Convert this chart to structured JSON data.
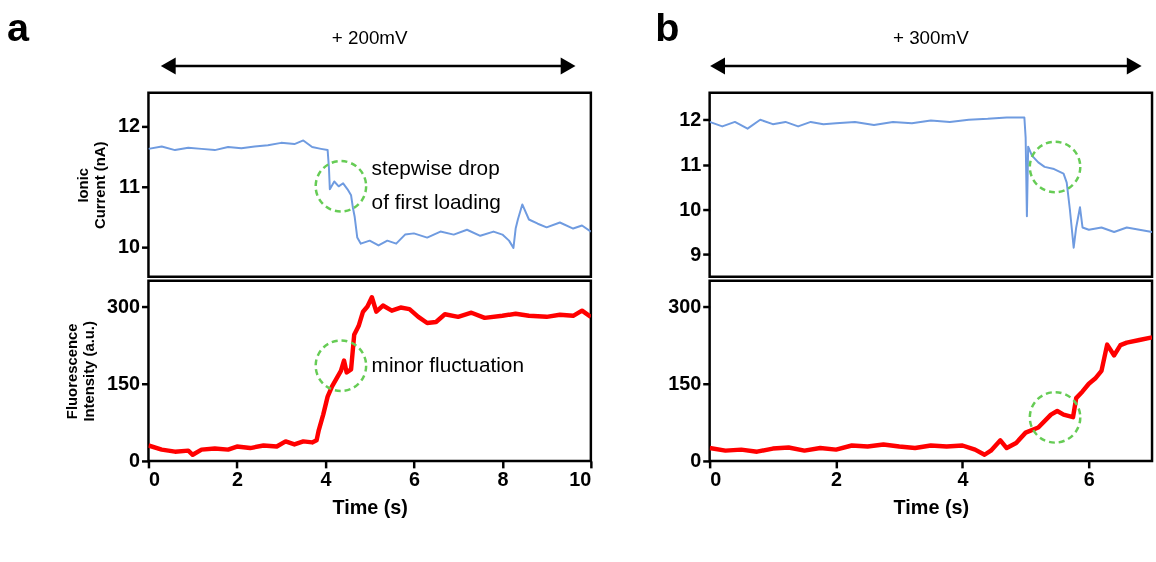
{
  "chart_data": [
    {
      "type": "line",
      "ylabel": "Ionic\nCurrent (nA)",
      "xlim": [
        0,
        10
      ],
      "xticks": [
        0,
        2,
        4,
        6,
        8,
        10
      ],
      "ylim": [
        9.5,
        12.55
      ],
      "yticks": [
        10,
        11,
        12
      ],
      "tick_labels": "y",
      "grid": false,
      "annotations": [
        "a",
        "+ 200mV",
        {
          "text": "stepwise drop\nof first loading",
          "x": 4.35,
          "y": 11.0
        }
      ],
      "series": [
        {
          "color": "#6f9be0",
          "x": [
            0,
            0.3,
            0.6,
            0.9,
            1.2,
            1.5,
            1.8,
            2.1,
            2.4,
            2.7,
            3.0,
            3.3,
            3.5,
            3.7,
            3.9,
            4.05,
            4.08,
            4.1,
            4.2,
            4.3,
            4.4,
            4.5,
            4.58,
            4.62,
            4.66,
            4.72,
            4.8,
            5.0,
            5.2,
            5.4,
            5.6,
            5.8,
            6.0,
            6.3,
            6.6,
            6.9,
            7.2,
            7.5,
            7.8,
            8.0,
            8.15,
            8.25,
            8.3,
            8.35,
            8.45,
            8.6,
            8.8,
            9.0,
            9.3,
            9.6,
            9.8,
            10
          ],
          "values": [
            11.62,
            11.66,
            11.6,
            11.64,
            11.62,
            11.6,
            11.65,
            11.63,
            11.66,
            11.68,
            11.72,
            11.7,
            11.76,
            11.65,
            11.62,
            11.6,
            11.3,
            10.95,
            11.08,
            11.0,
            11.05,
            10.95,
            10.85,
            10.65,
            10.5,
            10.15,
            10.05,
            10.1,
            10.02,
            10.1,
            10.05,
            10.2,
            10.22,
            10.15,
            10.25,
            10.2,
            10.28,
            10.18,
            10.25,
            10.2,
            10.1,
            9.98,
            10.3,
            10.45,
            10.7,
            10.45,
            10.38,
            10.32,
            10.4,
            10.3,
            10.35,
            10.25
          ]
        }
      ]
    },
    {
      "type": "line",
      "xlabel": "Time (s)",
      "ylabel": "Fluorescence\nIntensity (a.u.)",
      "xlim": [
        0,
        10
      ],
      "xticks": [
        0,
        2,
        4,
        6,
        8,
        10
      ],
      "ylim": [
        0,
        350
      ],
      "yticks": [
        0,
        150,
        300
      ],
      "grid": false,
      "annotations": [
        {
          "text": "minor fluctuation",
          "x": 4.35,
          "y": 185
        }
      ],
      "series": [
        {
          "color": "#ff0000",
          "x": [
            0,
            0.3,
            0.6,
            0.9,
            1.0,
            1.2,
            1.5,
            1.8,
            2.0,
            2.3,
            2.6,
            2.9,
            3.1,
            3.3,
            3.5,
            3.7,
            3.8,
            3.85,
            3.95,
            4.05,
            4.15,
            4.25,
            4.35,
            4.42,
            4.48,
            4.58,
            4.65,
            4.75,
            4.85,
            4.95,
            5.05,
            5.15,
            5.3,
            5.5,
            5.7,
            5.9,
            6.1,
            6.3,
            6.5,
            6.7,
            7.0,
            7.3,
            7.6,
            8.0,
            8.3,
            8.6,
            9.0,
            9.3,
            9.6,
            9.8,
            10
          ],
          "values": [
            30,
            22,
            18,
            20,
            12,
            22,
            24,
            22,
            28,
            25,
            30,
            28,
            38,
            32,
            38,
            36,
            40,
            60,
            90,
            125,
            145,
            160,
            175,
            195,
            172,
            178,
            245,
            262,
            290,
            300,
            318,
            290,
            302,
            292,
            298,
            295,
            280,
            268,
            270,
            285,
            280,
            288,
            278,
            282,
            286,
            282,
            280,
            284,
            282,
            292,
            280
          ]
        }
      ]
    },
    {
      "type": "line",
      "xlim": [
        0,
        7
      ],
      "xticks": [
        0,
        2,
        4,
        6
      ],
      "ylim": [
        8.5,
        12.6
      ],
      "yticks": [
        9,
        10,
        11,
        12
      ],
      "tick_labels": "y",
      "grid": false,
      "annotations": [
        "b",
        "+ 300mV"
      ],
      "series": [
        {
          "color": "#6f9be0",
          "x": [
            0,
            0.2,
            0.4,
            0.6,
            0.8,
            1.0,
            1.2,
            1.4,
            1.6,
            1.8,
            2.0,
            2.3,
            2.6,
            2.9,
            3.2,
            3.5,
            3.8,
            4.1,
            4.4,
            4.7,
            4.9,
            4.98,
            5.0,
            5.02,
            5.04,
            5.1,
            5.2,
            5.3,
            5.45,
            5.6,
            5.65,
            5.7,
            5.76,
            5.8,
            5.86,
            5.9,
            6.0,
            6.2,
            6.4,
            6.6,
            6.8,
            7.0
          ],
          "values": [
            11.95,
            11.85,
            11.95,
            11.8,
            12.0,
            11.9,
            11.95,
            11.85,
            11.95,
            11.9,
            11.92,
            11.95,
            11.88,
            11.95,
            11.92,
            11.98,
            11.95,
            12.0,
            12.02,
            12.05,
            12.05,
            12.05,
            11.6,
            9.85,
            11.4,
            11.2,
            11.05,
            10.95,
            10.9,
            10.8,
            10.6,
            10.0,
            9.15,
            9.6,
            10.05,
            9.6,
            9.55,
            9.6,
            9.5,
            9.6,
            9.55,
            9.5
          ]
        }
      ]
    },
    {
      "type": "line",
      "xlabel": "Time (s)",
      "xlim": [
        0,
        7
      ],
      "xticks": [
        0,
        2,
        4,
        6
      ],
      "ylim": [
        0,
        350
      ],
      "yticks": [
        0,
        150,
        300
      ],
      "grid": false,
      "series": [
        {
          "color": "#ff0000",
          "x": [
            0,
            0.25,
            0.5,
            0.75,
            1.0,
            1.25,
            1.5,
            1.75,
            2.0,
            2.25,
            2.5,
            2.75,
            3.0,
            3.25,
            3.5,
            3.75,
            4.0,
            4.2,
            4.35,
            4.45,
            4.6,
            4.7,
            4.85,
            5.0,
            5.2,
            5.4,
            5.5,
            5.6,
            5.75,
            5.8,
            5.9,
            6.0,
            6.1,
            6.2,
            6.29,
            6.4,
            6.5,
            6.6,
            6.8,
            7.0
          ],
          "values": [
            25,
            20,
            22,
            18,
            24,
            26,
            20,
            25,
            22,
            30,
            28,
            32,
            28,
            25,
            30,
            28,
            30,
            22,
            12,
            20,
            40,
            25,
            35,
            55,
            65,
            90,
            97,
            90,
            85,
            122,
            135,
            150,
            160,
            175,
            226,
            205,
            225,
            230,
            235,
            240
          ]
        }
      ]
    }
  ]
}
